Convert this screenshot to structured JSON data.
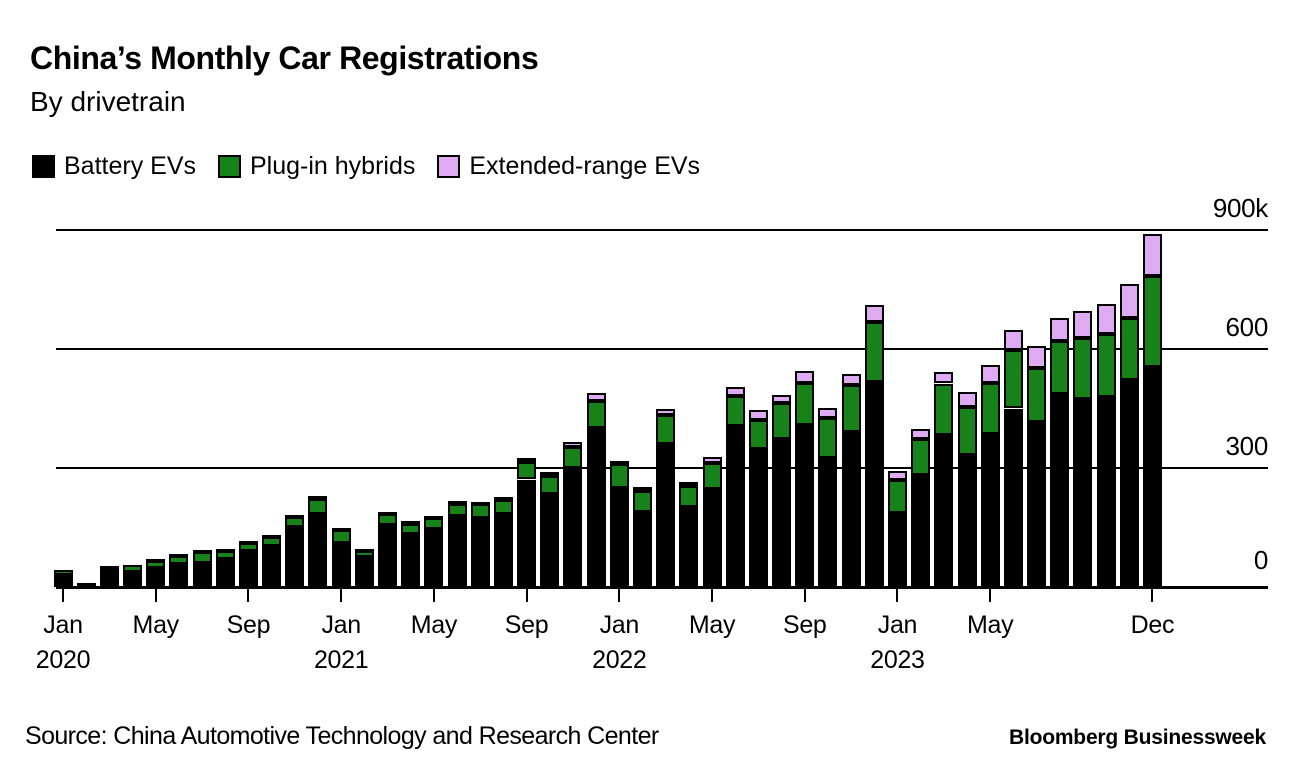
{
  "title": "China’s Monthly Car Registrations",
  "subtitle": "By drivetrain",
  "legend": {
    "items": [
      {
        "label": "Battery EVs",
        "color": "#000000"
      },
      {
        "label": "Plug-in hybrids",
        "color": "#17821a"
      },
      {
        "label": "Extended-range EVs",
        "color": "#deaaf1"
      }
    ]
  },
  "footer": {
    "source": "Source: China Automotive Technology and Research Center",
    "brand": "Bloomberg Businessweek"
  },
  "chart_data": {
    "type": "bar",
    "stacked": true,
    "title": "China’s Monthly Car Registrations",
    "subtitle": "By drivetrain",
    "unit": "thousand registrations",
    "ylabel": "",
    "xlabel": "",
    "ylim": [
      0,
      900
    ],
    "grid": true,
    "legend_position": "top",
    "x": [
      "Jan 2020",
      "Feb 2020",
      "Mar 2020",
      "Apr 2020",
      "May 2020",
      "Jun 2020",
      "Jul 2020",
      "Aug 2020",
      "Sep 2020",
      "Oct 2020",
      "Nov 2020",
      "Dec 2020",
      "Jan 2021",
      "Feb 2021",
      "Mar 2021",
      "Apr 2021",
      "May 2021",
      "Jun 2021",
      "Jul 2021",
      "Aug 2021",
      "Sep 2021",
      "Oct 2021",
      "Nov 2021",
      "Dec 2021",
      "Jan 2022",
      "Feb 2022",
      "Mar 2022",
      "Apr 2022",
      "May 2022",
      "Jun 2022",
      "Jul 2022",
      "Aug 2022",
      "Sep 2022",
      "Oct 2022",
      "Nov 2022",
      "Dec 2022",
      "Jan 2023",
      "Feb 2023",
      "Mar 2023",
      "Apr 2023",
      "May 2023",
      "Jun 2023",
      "Jul 2023",
      "Aug 2023",
      "Sep 2023",
      "Oct 2023",
      "Nov 2023",
      "Dec 2023"
    ],
    "series": [
      {
        "name": "Battery EVs",
        "color": "#000000",
        "values": [
          30,
          11,
          44,
          38,
          48,
          58,
          61,
          70,
          91,
          104,
          152,
          185,
          112,
          76,
          157,
          134,
          147,
          180,
          175,
          185,
          271,
          235,
          301,
          402,
          249,
          188,
          361,
          201,
          247,
          407,
          348,
          374,
          409,
          325,
          390,
          517,
          186,
          282,
          382,
          332,
          385,
          450,
          415,
          486,
          475,
          478,
          523,
          554
        ]
      },
      {
        "name": "Plug-in hybrids",
        "color": "#17821a",
        "values": [
          14,
          2,
          8,
          18,
          20,
          22,
          28,
          22,
          20,
          23,
          25,
          38,
          33,
          16,
          29,
          26,
          28,
          30,
          33,
          35,
          43,
          45,
          53,
          66,
          61,
          55,
          72,
          53,
          66,
          74,
          74,
          89,
          106,
          101,
          120,
          150,
          83,
          92,
          131,
          122,
          129,
          147,
          136,
          134,
          152,
          161,
          154,
          230
        ]
      },
      {
        "name": "Extended-range EVs",
        "color": "#deaaf1",
        "values": [
          1,
          0,
          1,
          2,
          3,
          3,
          5,
          5,
          5,
          5,
          5,
          6,
          4,
          4,
          4,
          7,
          5,
          8,
          7,
          8,
          10,
          9,
          11,
          20,
          8,
          9,
          17,
          11,
          15,
          24,
          24,
          20,
          29,
          25,
          28,
          45,
          23,
          24,
          28,
          38,
          46,
          50,
          56,
          57,
          68,
          74,
          86,
          106
        ]
      }
    ],
    "y_ticks": [
      {
        "value": 0,
        "label": "0"
      },
      {
        "value": 300,
        "label": "300"
      },
      {
        "value": 600,
        "label": "600"
      },
      {
        "value": 900,
        "label": "900k"
      }
    ],
    "x_ticks": [
      {
        "month_index": 0,
        "label": "Jan",
        "year": "2020"
      },
      {
        "month_index": 4,
        "label": "May",
        "year": ""
      },
      {
        "month_index": 8,
        "label": "Sep",
        "year": ""
      },
      {
        "month_index": 12,
        "label": "Jan",
        "year": "2021"
      },
      {
        "month_index": 16,
        "label": "May",
        "year": ""
      },
      {
        "month_index": 20,
        "label": "Sep",
        "year": ""
      },
      {
        "month_index": 24,
        "label": "Jan",
        "year": "2022"
      },
      {
        "month_index": 28,
        "label": "May",
        "year": ""
      },
      {
        "month_index": 32,
        "label": "Sep",
        "year": ""
      },
      {
        "month_index": 36,
        "label": "Jan",
        "year": "2023"
      },
      {
        "month_index": 40,
        "label": "May",
        "year": ""
      },
      {
        "month_index": 47,
        "label": "Dec",
        "year": ""
      }
    ]
  }
}
